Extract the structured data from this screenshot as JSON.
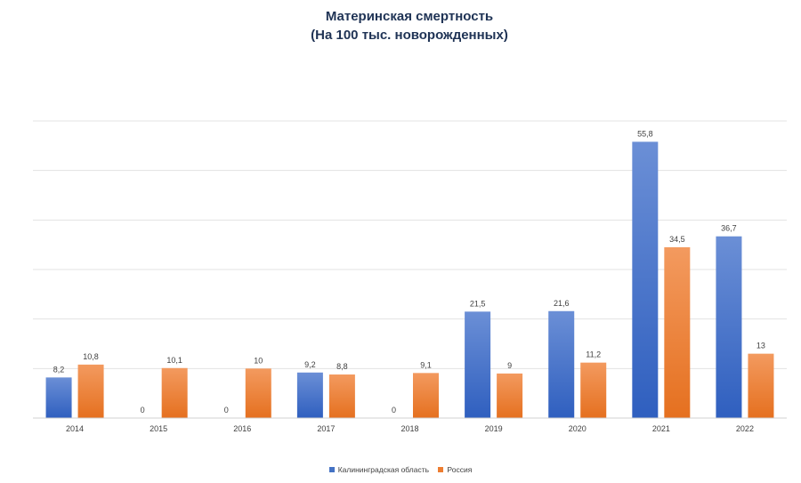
{
  "chart_data": {
    "type": "bar",
    "title": "Материнская смертность",
    "subtitle": "(На 100 тыс. новорожденных)",
    "categories": [
      "2014",
      "2015",
      "2016",
      "2017",
      "2018",
      "2019",
      "2020",
      "2021",
      "2022"
    ],
    "series": [
      {
        "name": "Калининградская область",
        "color": "#4472c4",
        "values": [
          8.2,
          0,
          0,
          9.2,
          0,
          21.5,
          21.6,
          55.8,
          36.7
        ],
        "labels": [
          "8,2",
          "0",
          "0",
          "9,2",
          "0",
          "21,5",
          "21,6",
          "55,8",
          "36,7"
        ]
      },
      {
        "name": "Россия",
        "color": "#ed7d31",
        "values": [
          10.8,
          10.1,
          10,
          8.8,
          9.1,
          9,
          11.2,
          34.5,
          13
        ],
        "labels": [
          "10,8",
          "10,1",
          "10",
          "8,8",
          "9,1",
          "9",
          "11,2",
          "34,5",
          "13"
        ]
      }
    ],
    "ylim": [
      0,
      60
    ],
    "grid": true,
    "xlabel": "",
    "ylabel": "",
    "legend_position": "bottom"
  }
}
